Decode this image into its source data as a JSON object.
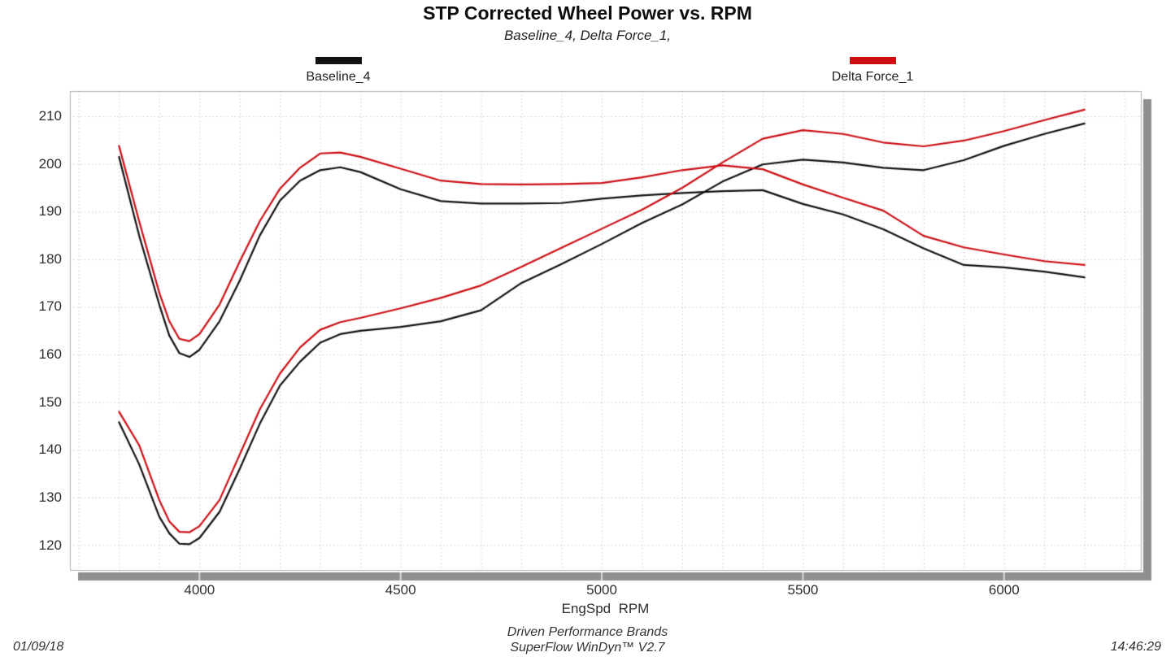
{
  "header": {
    "title": "STP Corrected Wheel Power vs. RPM",
    "subtitle": "Baseline_4, Delta Force_1,"
  },
  "legend": {
    "items": [
      {
        "label": "Baseline_4",
        "color": "#111111"
      },
      {
        "label": "Delta Force_1",
        "color": "#cc0e13"
      }
    ]
  },
  "x_axis": {
    "label": "EngSpd  RPM",
    "ticks": [
      4000,
      4500,
      5000,
      5500,
      6000
    ]
  },
  "y_axis": {
    "ticks": [
      210,
      200,
      190,
      180,
      170,
      160,
      150,
      140,
      130,
      120
    ]
  },
  "footer": {
    "date": "01/09/18",
    "brand": "Driven Performance Brands",
    "software": "SuperFlow WinDyn™ V2.7",
    "time": "14:46:29"
  },
  "chart_data": {
    "type": "line",
    "title": "STP Corrected Wheel Power vs. RPM",
    "subtitle": "Baseline_4, Delta Force_1,",
    "xlabel": "EngSpd RPM",
    "ylabel": "",
    "xlim": [
      3678,
      6340
    ],
    "ylim": [
      114.8,
      215.3
    ],
    "x_major_ticks": [
      4000,
      4500,
      5000,
      5500,
      6000
    ],
    "x_grid_step": 100,
    "y_grid_step": 10,
    "grid": "dotted",
    "legend_position": "top",
    "x": [
      3800,
      3850,
      3900,
      3925,
      3950,
      3975,
      4000,
      4050,
      4100,
      4150,
      4200,
      4250,
      4300,
      4350,
      4400,
      4500,
      4600,
      4700,
      4800,
      4900,
      5000,
      5100,
      5200,
      5300,
      5400,
      5500,
      5600,
      5700,
      5800,
      5900,
      6000,
      6100,
      6200
    ],
    "series": [
      {
        "name": "Baseline_4 power",
        "color": "#111111",
        "values": [
          145.8,
          137,
          126,
          122.5,
          120.3,
          120.2,
          121.5,
          127,
          136,
          145.5,
          153.5,
          158.5,
          162.5,
          164.3,
          165.0,
          165.8,
          167.0,
          169.3,
          175.0,
          179.0,
          183.2,
          187.6,
          191.5,
          196.3,
          199.9,
          200.9,
          200.3,
          199.2,
          198.7,
          200.8,
          203.8,
          206.3,
          208.5
        ]
      },
      {
        "name": "Baseline_4 torque",
        "color": "#111111",
        "values": [
          201.5,
          185,
          170.5,
          164,
          160.3,
          159.5,
          161.0,
          167,
          175.5,
          185,
          192.3,
          196.5,
          198.7,
          199.3,
          198.3,
          194.7,
          192.2,
          191.7,
          191.7,
          191.8,
          192.7,
          193.4,
          193.9,
          194.3,
          194.5,
          191.6,
          189.4,
          186.3,
          182.3,
          178.8,
          178.3,
          177.4,
          176.2
        ]
      },
      {
        "name": "Delta Force_1 power",
        "color": "#cc0e13",
        "values": [
          148.0,
          141,
          129.5,
          125,
          122.8,
          122.7,
          124.0,
          129.5,
          139,
          148.5,
          156,
          161.5,
          165.2,
          166.8,
          167.7,
          169.7,
          171.9,
          174.5,
          178.4,
          182.4,
          186.4,
          190.4,
          195.0,
          200.3,
          205.3,
          207.1,
          206.3,
          204.5,
          203.7,
          204.9,
          206.9,
          209.2,
          211.4
        ]
      },
      {
        "name": "Delta Force_1 torque",
        "color": "#cc0e13",
        "values": [
          203.8,
          188,
          173,
          167,
          163.3,
          162.8,
          164.3,
          170.5,
          179.5,
          188,
          194.8,
          199.2,
          202.2,
          202.4,
          201.5,
          199.0,
          196.5,
          195.8,
          195.7,
          195.8,
          196.0,
          197.2,
          198.7,
          199.7,
          198.9,
          195.7,
          192.9,
          190.2,
          184.9,
          182.5,
          181.0,
          179.6,
          178.8
        ]
      }
    ]
  }
}
